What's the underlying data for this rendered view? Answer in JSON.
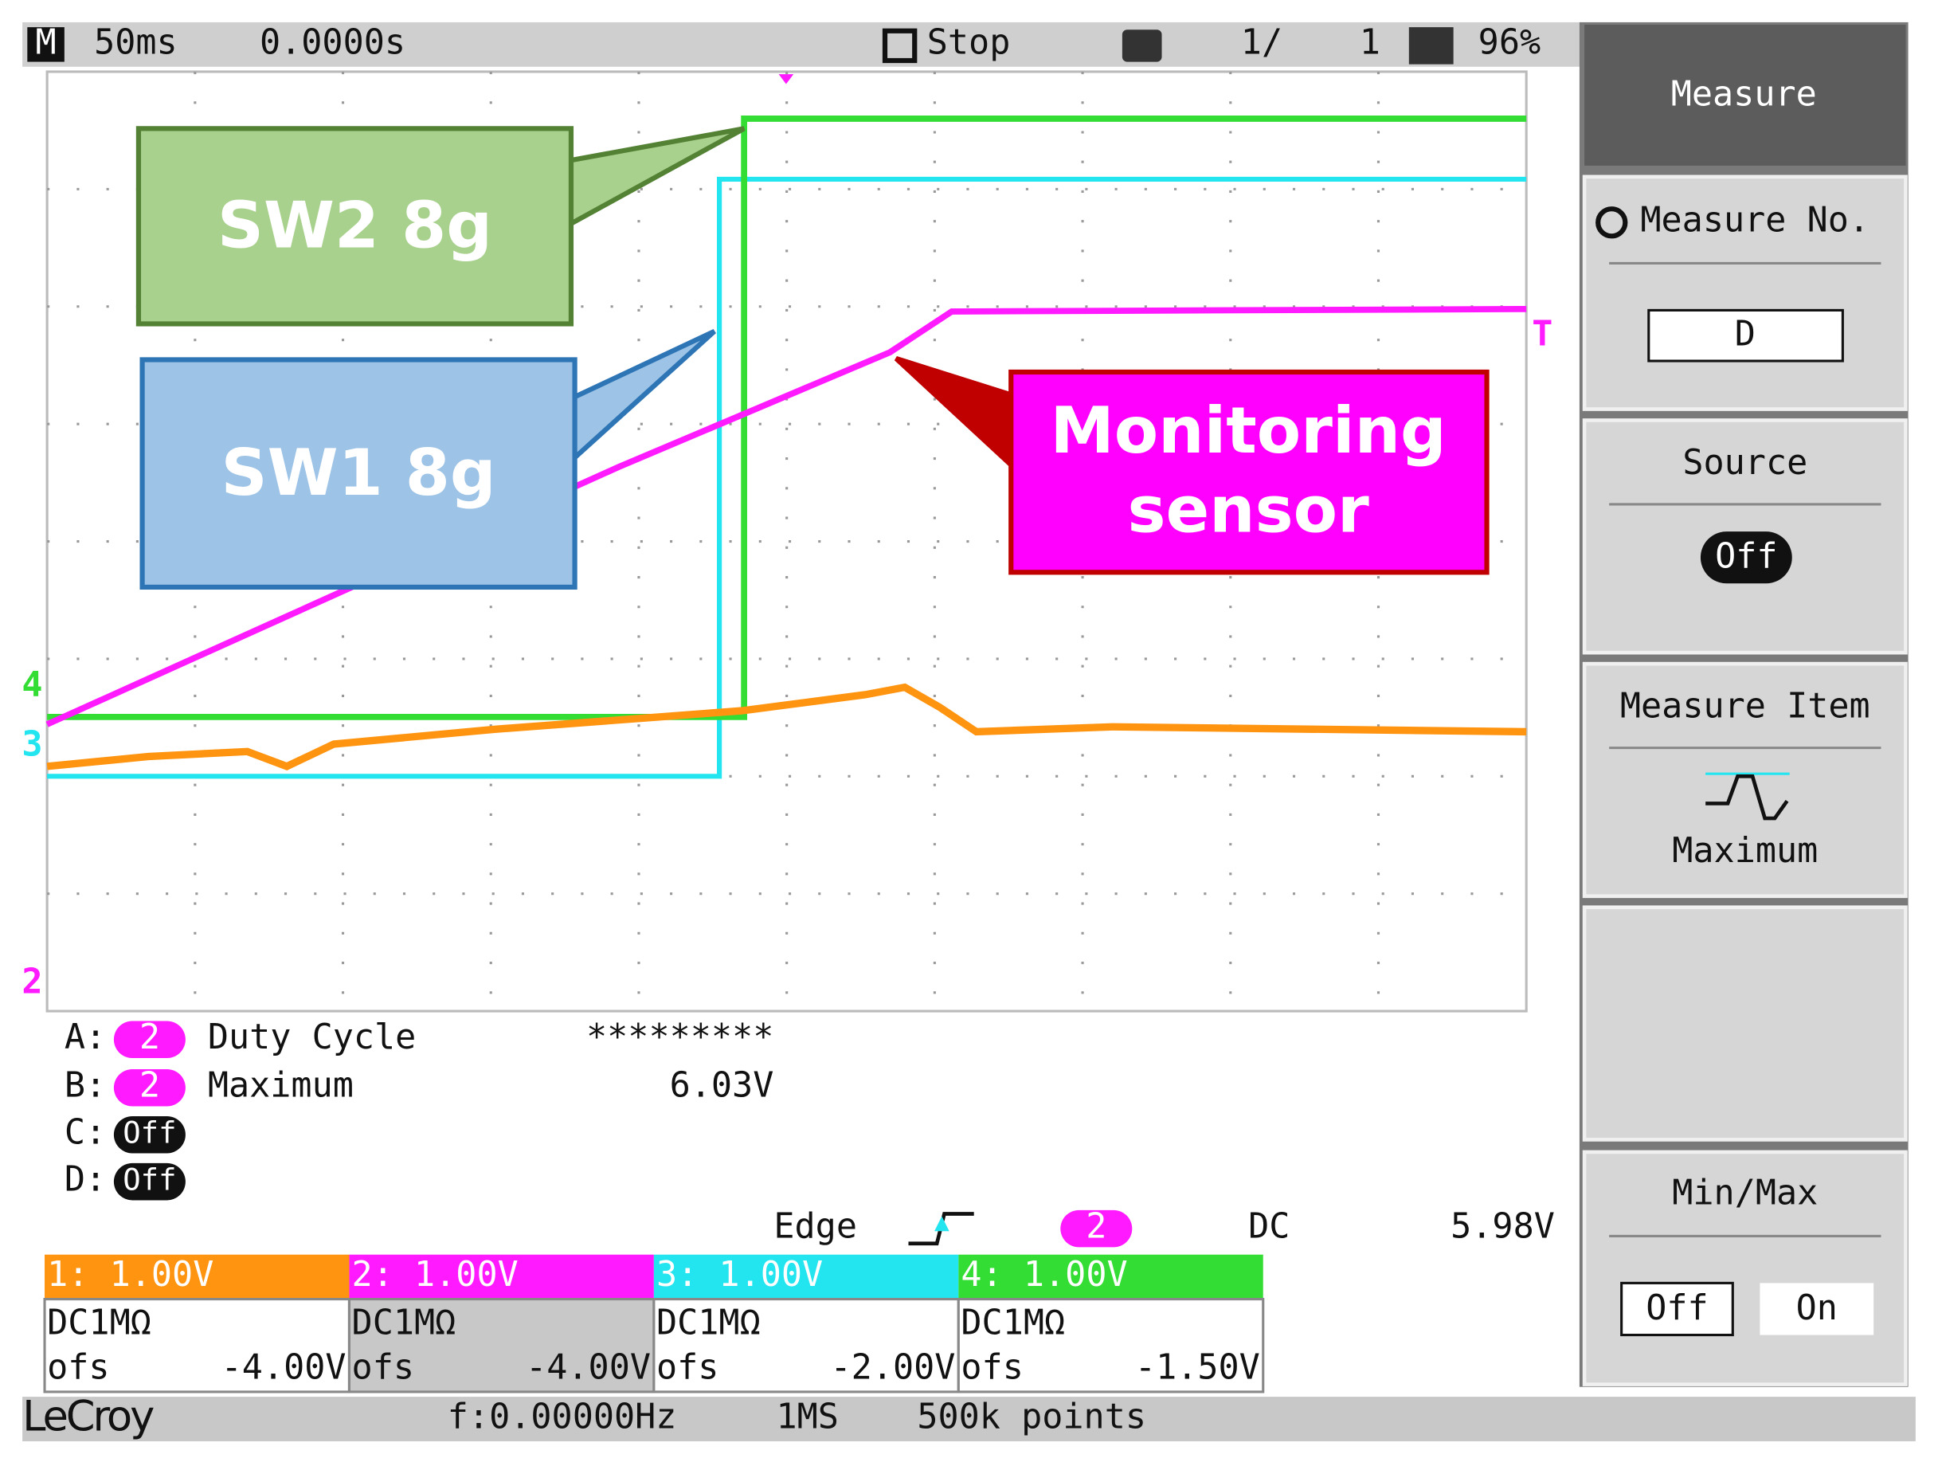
{
  "top_bar": {
    "mode": "M",
    "timebase": "50ms",
    "delay": "0.0000s",
    "status": "Stop",
    "count": "1/",
    "total": "1",
    "percent": "96%"
  },
  "annotations": [
    {
      "label": "SW2 8g"
    },
    {
      "label": "SW1 8g"
    },
    {
      "lines": [
        "Monitoring",
        "sensor"
      ]
    }
  ],
  "channel_markers": [
    "4",
    "3",
    "2"
  ],
  "trigger_marker": "T",
  "menu": {
    "title": "Measure",
    "items": [
      {
        "label": "Measure No.",
        "value": "D"
      },
      {
        "label": "Source",
        "value": "Off"
      },
      {
        "label": "Measure Item",
        "value": "Maximum"
      },
      {
        "label": "Min/Max",
        "options": [
          "Off",
          "On"
        ]
      }
    ]
  },
  "measurements": [
    {
      "slot": "A:",
      "channel": "2",
      "item": "Duty Cycle",
      "value": "*********"
    },
    {
      "slot": "B:",
      "channel": "2",
      "item": "Maximum",
      "value": "6.03V"
    },
    {
      "slot": "C:",
      "state": "Off"
    },
    {
      "slot": "D:",
      "state": "Off"
    }
  ],
  "trigger": {
    "type": "Edge",
    "channel": "2",
    "coupling": "DC",
    "level": "5.98V"
  },
  "channels": [
    {
      "header": "1: 1.00V",
      "coupling": "DC1MΩ",
      "offset_label": "ofs",
      "offset": "-4.00V"
    },
    {
      "header": "2: 1.00V",
      "coupling": "DC1MΩ",
      "offset_label": "ofs",
      "offset": "-4.00V"
    },
    {
      "header": "3: 1.00V",
      "coupling": "DC1MΩ",
      "offset_label": "ofs",
      "offset": "-2.00V"
    },
    {
      "header": "4: 1.00V",
      "coupling": "DC1MΩ",
      "offset_label": "ofs",
      "offset": "-1.50V"
    }
  ],
  "status_bar": {
    "brand": "LeCroy",
    "frequency": "f:0.00000Hz",
    "sample_rate": "1MS",
    "points": "500k points"
  }
}
